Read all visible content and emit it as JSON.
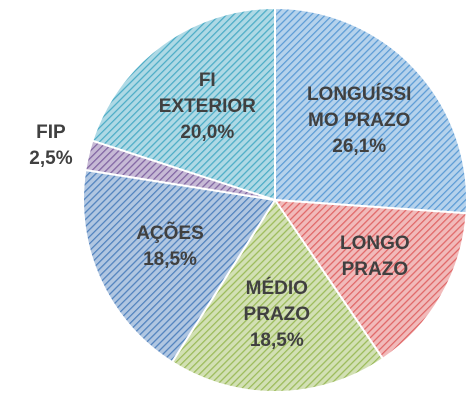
{
  "chart_data": {
    "type": "pie",
    "categories": [
      "LONGUÍSSIMO PRAZO",
      "LONGO PRAZO",
      "MÉDIO PRAZO",
      "AÇÕES",
      "FIP",
      "FI EXTERIOR"
    ],
    "values": [
      26.1,
      14.4,
      18.5,
      18.5,
      2.5,
      20.0
    ],
    "value_labels": [
      "26,1%",
      null,
      "18,5%",
      "18,5%",
      "2,5%",
      "20,0%"
    ],
    "colors": [
      "#5b9bd5",
      "#e06666",
      "#9bbb59",
      "#4f81bd",
      "#8064a2",
      "#4bacc6"
    ]
  }
}
